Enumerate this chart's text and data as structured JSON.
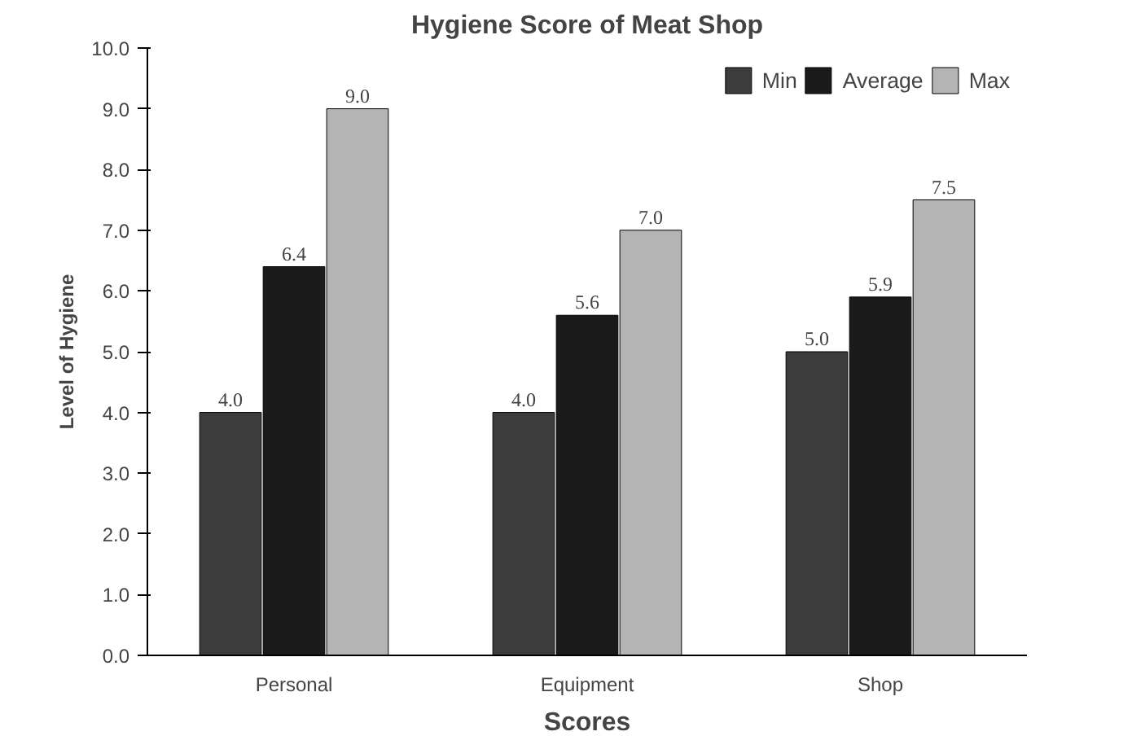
{
  "chart_data": {
    "type": "bar",
    "title": "Hygiene Score of Meat Shop",
    "xlabel": "Scores",
    "ylabel": "Level of Hygiene",
    "categories": [
      "Personal",
      "Equipment",
      "Shop"
    ],
    "series": [
      {
        "name": "Min",
        "color": "#3c3c3c",
        "values": [
          4.0,
          4.0,
          5.0
        ],
        "value_labels": [
          "4.0",
          "4.0",
          "5.0"
        ]
      },
      {
        "name": "Average",
        "color": "#1a1a1a",
        "values": [
          6.4,
          5.6,
          5.9
        ],
        "value_labels": [
          "6.4",
          "5.6",
          "5.9"
        ]
      },
      {
        "name": "Max",
        "color": "#b4b4b4",
        "values": [
          9.0,
          7.0,
          7.5
        ],
        "value_labels": [
          "9.0",
          "7.0",
          "7.5"
        ]
      }
    ],
    "ylim": [
      0,
      10
    ],
    "yticks": [
      {
        "value": 0,
        "label": "0.0"
      },
      {
        "value": 1,
        "label": "1.0"
      },
      {
        "value": 2,
        "label": "2.0"
      },
      {
        "value": 3,
        "label": "3.0"
      },
      {
        "value": 4,
        "label": "4.0"
      },
      {
        "value": 5,
        "label": "5.0"
      },
      {
        "value": 6,
        "label": "6.0"
      },
      {
        "value": 7,
        "label": "7.0"
      },
      {
        "value": 8,
        "label": "8.0"
      },
      {
        "value": 9,
        "label": "9.0"
      },
      {
        "value": 10,
        "label": "10.0"
      }
    ],
    "legend": "top right",
    "grid": false
  }
}
